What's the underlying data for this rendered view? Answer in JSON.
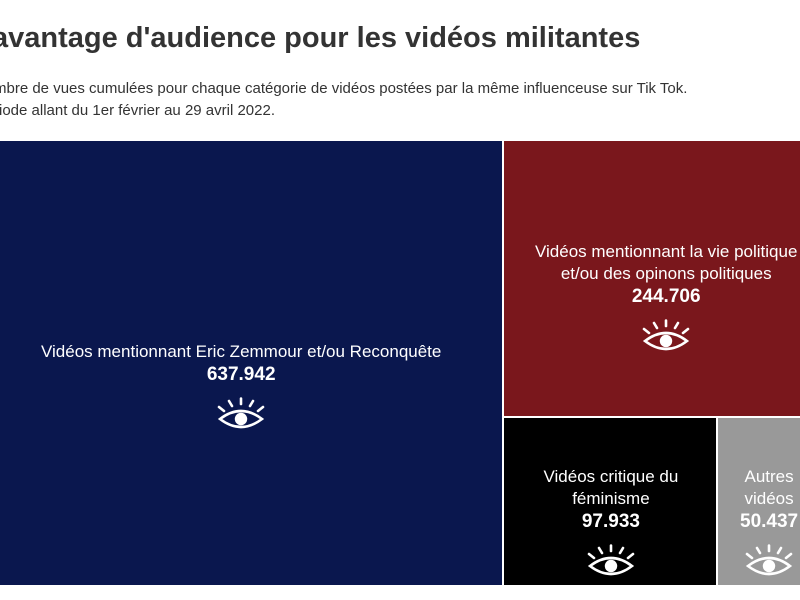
{
  "title": "avantage d'audience pour les vidéos militantes",
  "subtitle_lines": [
    "mbre de vues cumulées pour chaque catégorie de vidéos postées par la même influenceuse sur Tik Tok.",
    "riode allant du 1er février au 29 avril 2022."
  ],
  "chart_data": {
    "type": "treemap",
    "items": [
      {
        "label_lines": [
          "Vidéos mentionnant Eric Zemmour et/ou Reconquête"
        ],
        "value": 637942,
        "value_label": "637.942",
        "color": "#0a174e",
        "icon": "eye-icon"
      },
      {
        "label_lines": [
          "Vidéos mentionnant la vie politique",
          "et/ou des opinons politiques"
        ],
        "value": 244706,
        "value_label": "244.706",
        "color": "#7a171c",
        "icon": "eye-icon"
      },
      {
        "label_lines": [
          "Vidéos critique du",
          "féminisme"
        ],
        "value": 97933,
        "value_label": "97.933",
        "color": "#000000",
        "icon": "eye-icon"
      },
      {
        "label_lines": [
          "Autres",
          "vidéos"
        ],
        "value": 50437,
        "value_label": "50.437",
        "color": "#999999",
        "icon": "eye-icon"
      }
    ]
  }
}
